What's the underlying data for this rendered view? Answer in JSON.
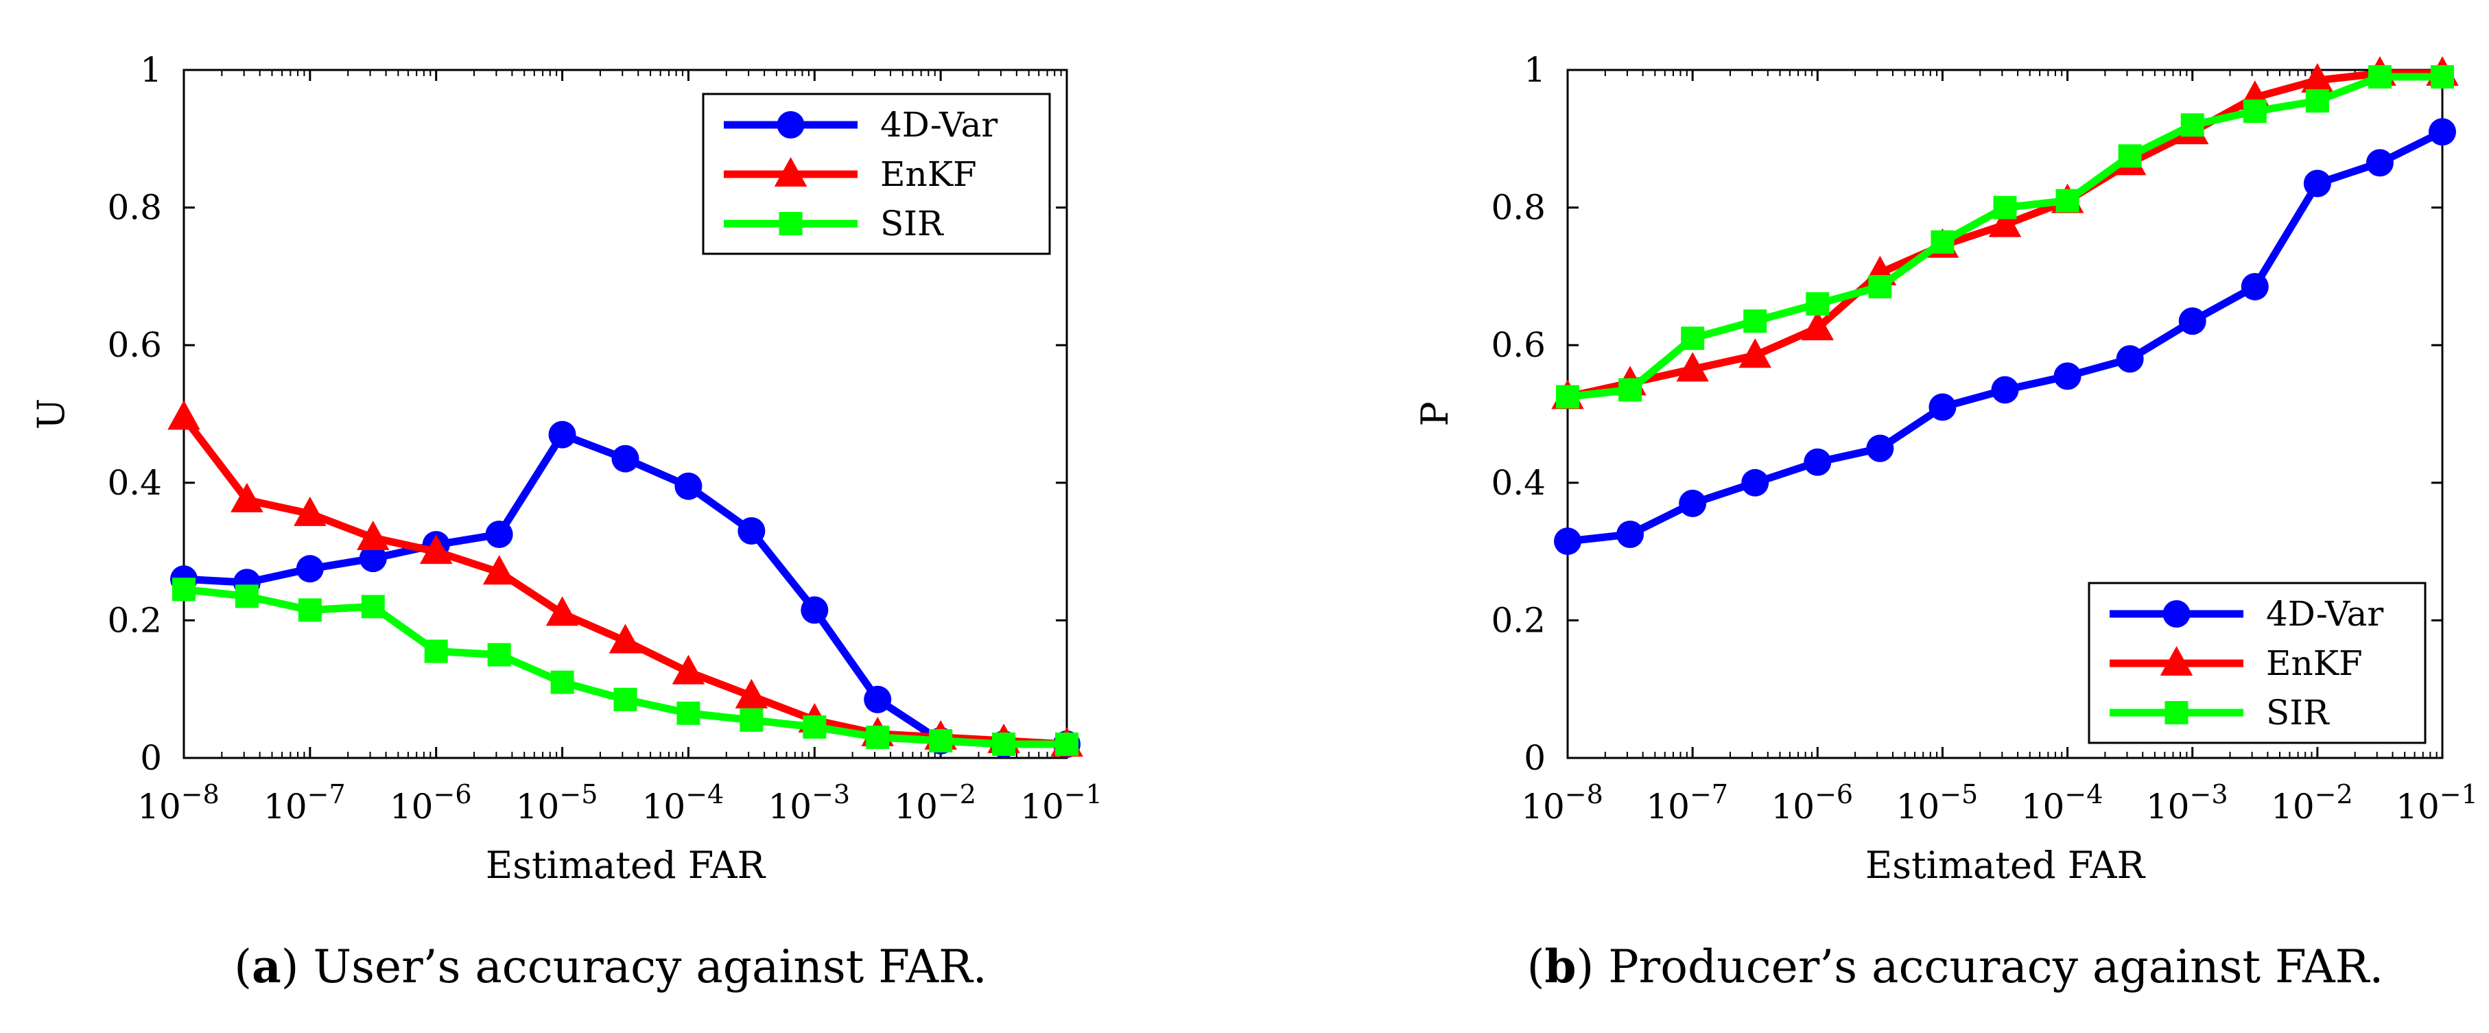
{
  "chart_data": [
    {
      "type": "line",
      "panel": "a",
      "xscale": "log",
      "xlabel": "Estimated FAR",
      "ylabel": "U",
      "xlim": [
        -8,
        -1
      ],
      "ylim": [
        0,
        1
      ],
      "x": [
        -8,
        -7.5,
        -7,
        -6.5,
        -6,
        -5.5,
        -5,
        -4.5,
        -4,
        -3.5,
        -3,
        -2.5,
        -2,
        -1.5,
        -1
      ],
      "xticks": [
        {
          "base": "10",
          "exp": "−8"
        },
        {
          "base": "10",
          "exp": "−7"
        },
        {
          "base": "10",
          "exp": "−6"
        },
        {
          "base": "10",
          "exp": "−5"
        },
        {
          "base": "10",
          "exp": "−4"
        },
        {
          "base": "10",
          "exp": "−3"
        },
        {
          "base": "10",
          "exp": "−2"
        },
        {
          "base": "10",
          "exp": "−1"
        }
      ],
      "yticks": [
        "0",
        "0.2",
        "0.4",
        "0.6",
        "0.8",
        "1"
      ],
      "legend_position": "top-right",
      "series": [
        {
          "name": "4D-Var",
          "color": "#0000ff",
          "marker": "circle",
          "values": [
            0.26,
            0.255,
            0.275,
            0.29,
            0.31,
            0.325,
            0.47,
            0.435,
            0.395,
            0.33,
            0.215,
            0.085,
            0.025,
            0.02,
            0.02
          ]
        },
        {
          "name": "EnKF",
          "color": "#ff0000",
          "marker": "triangle",
          "values": [
            0.495,
            0.375,
            0.355,
            0.32,
            0.3,
            0.27,
            0.21,
            0.17,
            0.125,
            0.09,
            0.055,
            0.035,
            0.03,
            0.025,
            0.02
          ]
        },
        {
          "name": "SIR",
          "color": "#00ff00",
          "marker": "square",
          "values": [
            0.245,
            0.235,
            0.215,
            0.22,
            0.155,
            0.15,
            0.11,
            0.085,
            0.065,
            0.055,
            0.045,
            0.03,
            0.025,
            0.02,
            0.02
          ]
        }
      ],
      "caption": {
        "letter": "a",
        "text": " User’s accuracy against FAR."
      }
    },
    {
      "type": "line",
      "panel": "b",
      "xscale": "log",
      "xlabel": "Estimated FAR",
      "ylabel": "P",
      "xlim": [
        -8,
        -1
      ],
      "ylim": [
        0,
        1
      ],
      "x": [
        -8,
        -7.5,
        -7,
        -6.5,
        -6,
        -5.5,
        -5,
        -4.5,
        -4,
        -3.5,
        -3,
        -2.5,
        -2,
        -1.5,
        -1
      ],
      "xticks": [
        {
          "base": "10",
          "exp": "−8"
        },
        {
          "base": "10",
          "exp": "−7"
        },
        {
          "base": "10",
          "exp": "−6"
        },
        {
          "base": "10",
          "exp": "−5"
        },
        {
          "base": "10",
          "exp": "−4"
        },
        {
          "base": "10",
          "exp": "−3"
        },
        {
          "base": "10",
          "exp": "−2"
        },
        {
          "base": "10",
          "exp": "−1"
        }
      ],
      "yticks": [
        "0",
        "0.2",
        "0.4",
        "0.6",
        "0.8",
        "1"
      ],
      "legend_position": "bottom-right",
      "series": [
        {
          "name": "4D-Var",
          "color": "#0000ff",
          "marker": "circle",
          "values": [
            0.315,
            0.325,
            0.37,
            0.4,
            0.43,
            0.45,
            0.51,
            0.535,
            0.555,
            0.58,
            0.635,
            0.685,
            0.835,
            0.865,
            0.91
          ]
        },
        {
          "name": "EnKF",
          "color": "#ff0000",
          "marker": "triangle",
          "values": [
            0.525,
            0.545,
            0.565,
            0.585,
            0.625,
            0.705,
            0.745,
            0.775,
            0.81,
            0.865,
            0.91,
            0.96,
            0.985,
            0.995,
            0.995
          ]
        },
        {
          "name": "SIR",
          "color": "#00ff00",
          "marker": "square",
          "values": [
            0.525,
            0.535,
            0.61,
            0.635,
            0.66,
            0.685,
            0.75,
            0.8,
            0.81,
            0.875,
            0.92,
            0.94,
            0.955,
            0.99,
            0.99
          ]
        }
      ],
      "caption": {
        "letter": "b",
        "text": " Producer’s accuracy against FAR."
      }
    }
  ]
}
